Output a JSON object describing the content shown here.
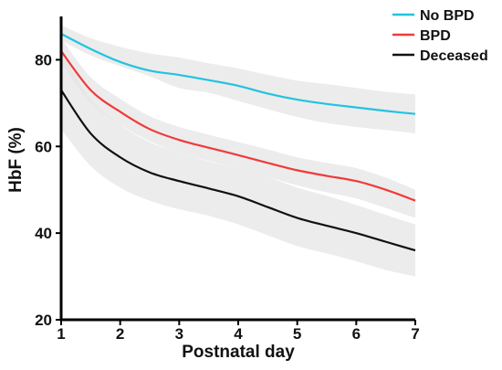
{
  "chart_data": {
    "type": "line",
    "title": "",
    "xlabel": "Postnatal day",
    "ylabel": "HbF (%)",
    "xlim": [
      1,
      7
    ],
    "ylim": [
      20,
      90
    ],
    "x_ticks": [
      1,
      2,
      3,
      4,
      5,
      6,
      7
    ],
    "y_ticks": [
      20,
      40,
      60,
      80
    ],
    "grid": false,
    "legend_position": "top-right",
    "band_color": "#e6e6e6",
    "series": [
      {
        "name": "No BPD",
        "color": "#22c3e0",
        "x": [
          1,
          1.5,
          2,
          2.5,
          3,
          3.5,
          4,
          4.5,
          5,
          5.5,
          6,
          6.5,
          7
        ],
        "y": [
          86,
          82.5,
          79.5,
          77.5,
          76.5,
          75.3,
          74,
          72.2,
          70.8,
          69.8,
          69,
          68.2,
          67.5
        ],
        "ci_lower": [
          84.5,
          81,
          78.5,
          76.2,
          73.5,
          72.4,
          70.5,
          68.6,
          66.8,
          65.4,
          64.5,
          63.8,
          63
        ],
        "ci_upper": [
          88,
          85,
          83,
          81.5,
          80.5,
          79.2,
          78,
          76.5,
          75.2,
          74.4,
          73.5,
          72.6,
          72
        ]
      },
      {
        "name": "BPD",
        "color": "#f03a3a",
        "x": [
          1,
          1.5,
          2,
          2.5,
          3,
          3.5,
          4,
          4.5,
          5,
          5.5,
          6,
          6.5,
          7
        ],
        "y": [
          82,
          73,
          68,
          64,
          61.5,
          59.7,
          58,
          56.2,
          54.5,
          53.2,
          52,
          50,
          47.5
        ],
        "ci_lower": [
          79,
          70,
          65,
          61.2,
          58.5,
          56.6,
          55,
          53,
          51,
          49.4,
          48,
          45.8,
          43.5
        ],
        "ci_upper": [
          85,
          76,
          71,
          67,
          64.5,
          62.7,
          61,
          59.3,
          57.5,
          56.2,
          55,
          52.8,
          50
        ]
      },
      {
        "name": "Deceased",
        "color": "#111111",
        "x": [
          1,
          1.5,
          2,
          2.5,
          3,
          3.5,
          4,
          4.5,
          5,
          5.5,
          6,
          6.5,
          7
        ],
        "y": [
          73,
          63,
          57.5,
          54,
          52,
          50.3,
          48.5,
          46,
          43.5,
          41.7,
          40,
          38,
          36
        ],
        "ci_lower": [
          64,
          55.5,
          50.5,
          47.5,
          45.5,
          44,
          42,
          39.5,
          37,
          35.3,
          33.5,
          31.5,
          30
        ],
        "ci_upper": [
          82,
          71,
          65,
          61,
          58.5,
          56.5,
          55,
          53,
          50.5,
          48.6,
          46.5,
          44.2,
          42
        ]
      }
    ]
  }
}
